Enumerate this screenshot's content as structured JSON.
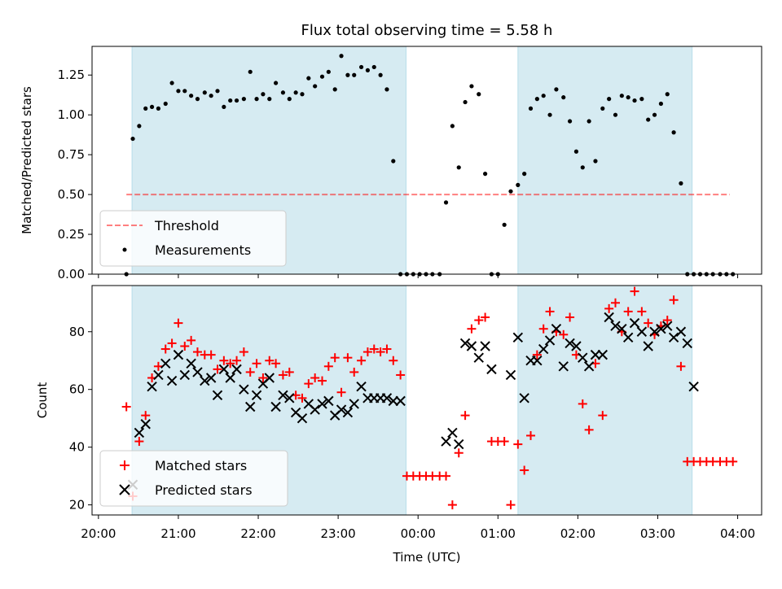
{
  "figure": {
    "title": "Flux total observing time = 5.58 h",
    "colors": {
      "shade": "#add8e6",
      "threshold": "#ff0000",
      "measurements": "#000000",
      "matched": "#ff0000",
      "predicted": "#000000"
    }
  },
  "chart_data": [
    {
      "type": "scatter",
      "ylabel": "Matched/Predicted stars",
      "xlabel": "",
      "x_unit": "hours since 20:00 UTC",
      "xlim": [
        -0.08,
        8.3
      ],
      "ylim": [
        0,
        1.43
      ],
      "yticks": [
        {
          "v": 0.0,
          "label": "0.00"
        },
        {
          "v": 0.25,
          "label": "0.25"
        },
        {
          "v": 0.5,
          "label": "0.50"
        },
        {
          "v": 0.75,
          "label": "0.75"
        },
        {
          "v": 1.0,
          "label": "1.00"
        },
        {
          "v": 1.25,
          "label": "1.25"
        }
      ],
      "shaded_spans": [
        [
          0.42,
          3.85
        ],
        [
          5.25,
          7.43
        ]
      ],
      "legend": {
        "location": "lower-left",
        "entries": [
          "Threshold",
          "Measurements"
        ]
      },
      "threshold": {
        "name": "Threshold",
        "value": 0.5,
        "x_range": [
          0.35,
          7.9
        ]
      },
      "measurements": {
        "name": "Measurements",
        "x": [
          0.35,
          0.43,
          0.51,
          0.59,
          0.67,
          0.75,
          0.84,
          0.92,
          1.0,
          1.08,
          1.16,
          1.24,
          1.33,
          1.41,
          1.49,
          1.57,
          1.65,
          1.73,
          1.82,
          1.9,
          1.98,
          2.06,
          2.14,
          2.22,
          2.31,
          2.39,
          2.47,
          2.55,
          2.63,
          2.71,
          2.8,
          2.88,
          2.96,
          3.04,
          3.12,
          3.2,
          3.29,
          3.37,
          3.45,
          3.53,
          3.61,
          3.69,
          3.78,
          3.86,
          3.94,
          4.02,
          4.1,
          4.18,
          4.27,
          4.35,
          4.43,
          4.51,
          4.59,
          4.67,
          4.76,
          4.84,
          4.92,
          5.0,
          5.08,
          5.16,
          5.25,
          5.33,
          5.41,
          5.49,
          5.57,
          5.65,
          5.73,
          5.82,
          5.9,
          5.98,
          6.06,
          6.14,
          6.22,
          6.31,
          6.39,
          6.47,
          6.55,
          6.63,
          6.71,
          6.8,
          6.88,
          6.96,
          7.04,
          7.12,
          7.2,
          7.29,
          7.37,
          7.45,
          7.53,
          7.61,
          7.69,
          7.78,
          7.86,
          7.94
        ],
        "y": [
          0.0,
          0.85,
          0.93,
          1.04,
          1.05,
          1.04,
          1.07,
          1.2,
          1.15,
          1.15,
          1.12,
          1.1,
          1.14,
          1.12,
          1.15,
          1.05,
          1.09,
          1.09,
          1.1,
          1.27,
          1.1,
          1.13,
          1.1,
          1.2,
          1.14,
          1.1,
          1.14,
          1.13,
          1.23,
          1.18,
          1.24,
          1.27,
          1.16,
          1.37,
          1.25,
          1.25,
          1.3,
          1.28,
          1.3,
          1.25,
          1.16,
          0.71,
          0.0,
          0.0,
          0.0,
          0.0,
          0.0,
          0.0,
          0.0,
          0.45,
          0.93,
          0.67,
          1.08,
          1.18,
          1.13,
          0.63,
          0.0,
          0.0,
          0.31,
          0.52,
          0.56,
          0.63,
          1.04,
          1.1,
          1.12,
          1.0,
          1.16,
          1.11,
          0.96,
          0.77,
          0.67,
          0.96,
          0.71,
          1.04,
          1.1,
          1.0,
          1.12,
          1.11,
          1.09,
          1.1,
          0.97,
          1.0,
          1.07,
          1.13,
          0.89,
          0.57,
          0.0,
          0.0,
          0.0,
          0.0,
          0.0,
          0.0,
          0.0,
          0.0
        ]
      }
    },
    {
      "type": "scatter",
      "ylabel": "Count",
      "xlabel": "Time (UTC)",
      "x_unit": "hours since 20:00 UTC",
      "xlim": [
        -0.08,
        8.3
      ],
      "ylim": [
        16.5,
        96
      ],
      "yticks": [
        {
          "v": 20,
          "label": "20"
        },
        {
          "v": 40,
          "label": "40"
        },
        {
          "v": 60,
          "label": "60"
        },
        {
          "v": 80,
          "label": "80"
        }
      ],
      "xticks": [
        {
          "v": 0,
          "label": "20:00"
        },
        {
          "v": 1,
          "label": "21:00"
        },
        {
          "v": 2,
          "label": "22:00"
        },
        {
          "v": 3,
          "label": "23:00"
        },
        {
          "v": 4,
          "label": "00:00"
        },
        {
          "v": 5,
          "label": "01:00"
        },
        {
          "v": 6,
          "label": "02:00"
        },
        {
          "v": 7,
          "label": "03:00"
        },
        {
          "v": 8,
          "label": "04:00"
        }
      ],
      "shaded_spans": [
        [
          0.42,
          3.85
        ],
        [
          5.25,
          7.43
        ]
      ],
      "legend": {
        "location": "lower-left",
        "entries": [
          "Matched stars",
          "Predicted stars"
        ]
      },
      "series": [
        {
          "name": "Matched stars",
          "marker": "plus",
          "x": [
            0.35,
            0.43,
            0.51,
            0.59,
            0.67,
            0.75,
            0.84,
            0.92,
            1.0,
            1.08,
            1.16,
            1.24,
            1.33,
            1.41,
            1.49,
            1.57,
            1.65,
            1.73,
            1.82,
            1.9,
            1.98,
            2.06,
            2.14,
            2.22,
            2.31,
            2.39,
            2.47,
            2.55,
            2.63,
            2.71,
            2.8,
            2.88,
            2.96,
            3.04,
            3.12,
            3.2,
            3.29,
            3.37,
            3.45,
            3.53,
            3.61,
            3.69,
            3.78,
            3.86,
            3.94,
            4.02,
            4.1,
            4.18,
            4.27,
            4.35,
            4.43,
            4.51,
            4.59,
            4.67,
            4.76,
            4.84,
            4.92,
            5.0,
            5.08,
            5.16,
            5.25,
            5.33,
            5.41,
            5.49,
            5.57,
            5.65,
            5.73,
            5.82,
            5.9,
            5.98,
            6.06,
            6.14,
            6.22,
            6.31,
            6.39,
            6.47,
            6.55,
            6.63,
            6.71,
            6.8,
            6.88,
            6.96,
            7.04,
            7.12,
            7.2,
            7.29,
            7.37,
            7.45,
            7.53,
            7.61,
            7.69,
            7.78,
            7.86,
            7.94
          ],
          "y": [
            54,
            23,
            42,
            51,
            64,
            68,
            74,
            76,
            83,
            75,
            77,
            73,
            72,
            72,
            67,
            70,
            69,
            70,
            73,
            66,
            69,
            64,
            70,
            69,
            65,
            66,
            58,
            57,
            62,
            64,
            63,
            68,
            71,
            59,
            71,
            66,
            70,
            73,
            74,
            73,
            74,
            70,
            65,
            30,
            30,
            30,
            30,
            30,
            30,
            30,
            20,
            38,
            51,
            81,
            84,
            85,
            42,
            42,
            42,
            20,
            41,
            32,
            44,
            72,
            81,
            87,
            80,
            79,
            85,
            72,
            55,
            46,
            69,
            51,
            88,
            90,
            80,
            87,
            94,
            87,
            83,
            79,
            82,
            84,
            91,
            68,
            35,
            35,
            35,
            35,
            35,
            35,
            35,
            35
          ]
        },
        {
          "name": "Predicted stars",
          "marker": "x",
          "x": [
            0.43,
            0.51,
            0.59,
            0.67,
            0.75,
            0.84,
            0.92,
            1.0,
            1.08,
            1.16,
            1.24,
            1.33,
            1.41,
            1.49,
            1.57,
            1.65,
            1.73,
            1.82,
            1.9,
            1.98,
            2.06,
            2.14,
            2.22,
            2.31,
            2.39,
            2.47,
            2.55,
            2.63,
            2.71,
            2.8,
            2.88,
            2.96,
            3.04,
            3.12,
            3.2,
            3.29,
            3.37,
            3.45,
            3.53,
            3.61,
            3.69,
            3.78,
            4.35,
            4.43,
            4.51,
            4.59,
            4.67,
            4.76,
            4.84,
            4.92,
            5.16,
            5.25,
            5.33,
            5.41,
            5.49,
            5.57,
            5.65,
            5.73,
            5.82,
            5.9,
            5.98,
            6.06,
            6.14,
            6.22,
            6.31,
            6.39,
            6.47,
            6.55,
            6.63,
            6.71,
            6.8,
            6.88,
            6.96,
            7.04,
            7.12,
            7.2,
            7.29,
            7.37,
            7.45
          ],
          "y": [
            27,
            45,
            48,
            61,
            65,
            69,
            63,
            72,
            65,
            69,
            66,
            63,
            64,
            58,
            67,
            64,
            67,
            60,
            54,
            58,
            62,
            64,
            54,
            58,
            57,
            52,
            50,
            55,
            53,
            55,
            56,
            51,
            53,
            52,
            55,
            61,
            57,
            57,
            57,
            57,
            56,
            56,
            42,
            45,
            41,
            76,
            75,
            71,
            75,
            67,
            65,
            78,
            57,
            70,
            70,
            74,
            77,
            81,
            68,
            76,
            75,
            71,
            68,
            72,
            72,
            85,
            82,
            81,
            78,
            83,
            80,
            75,
            80,
            81,
            82,
            78,
            80,
            76,
            61
          ]
        }
      ]
    }
  ]
}
